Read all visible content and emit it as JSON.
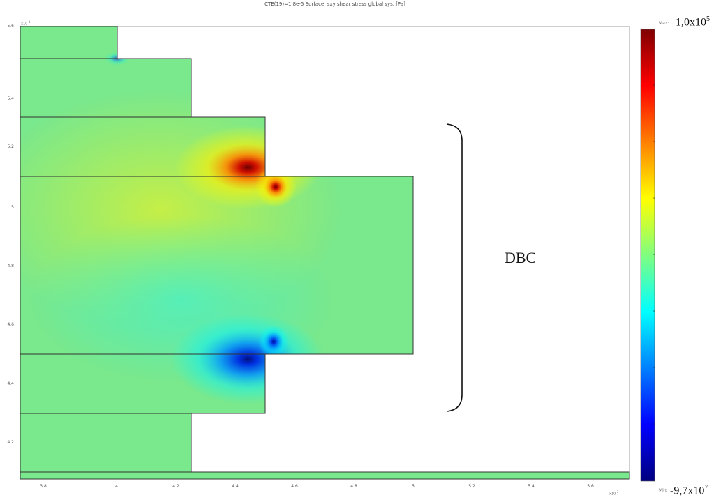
{
  "title": "CTE(19)=1.8e-5   Surface: sxy shear stress global sys. [Pa]",
  "y_axis": {
    "exponent": "x10",
    "exponent_power": "-3",
    "ticks": [
      "5.6",
      "5.4",
      "5.2",
      "5",
      "4.8",
      "4.6",
      "4.4",
      "4.2"
    ]
  },
  "x_axis": {
    "exponent": "x10",
    "exponent_power": "-3",
    "ticks": [
      "3.8",
      "4",
      "4.2",
      "4.4",
      "4.6",
      "4.8",
      "5",
      "5.2",
      "5.4",
      "5.6"
    ]
  },
  "colorbar": {
    "max_tag": "Max:",
    "min_tag": "Min:",
    "max_value": "1,0x10",
    "max_power": "5",
    "min_value": "-9,7x10",
    "min_power": "7",
    "stops": [
      "#00007f",
      "#0000ff",
      "#0080ff",
      "#00ffff",
      "#80ff80",
      "#ffff00",
      "#ff8000",
      "#ff0000",
      "#7f0000"
    ]
  },
  "annotation": "DBC",
  "colors": {
    "field": "#7ae88c",
    "outline": "#333333"
  }
}
